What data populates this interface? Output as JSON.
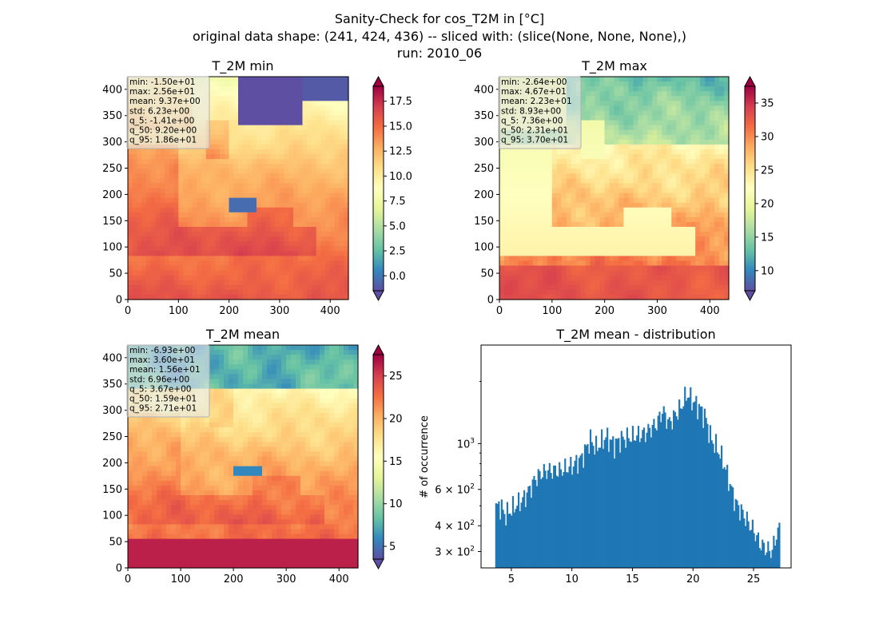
{
  "figure": {
    "title_lines": [
      "Sanity-Check for cos_T2M in [°C]",
      "original data shape: (241, 424, 436) -- sliced with: (slice(None, None, None),)",
      "run: 2010_06"
    ]
  },
  "colormap": {
    "name": "Spectral_r",
    "stops": [
      "#5e4fa2",
      "#3288bd",
      "#66c2a5",
      "#abdda4",
      "#e6f598",
      "#ffffbf",
      "#fee08b",
      "#fdae61",
      "#f46d43",
      "#d53e4f",
      "#9e0142"
    ]
  },
  "chart_data": [
    {
      "type": "heatmap",
      "title": "T_2M min",
      "xlim": [
        0,
        436
      ],
      "ylim": [
        0,
        424
      ],
      "xticks": [
        0,
        100,
        200,
        300,
        400
      ],
      "yticks": [
        0,
        50,
        100,
        150,
        200,
        250,
        300,
        350,
        400
      ],
      "colorbar": {
        "vmin": -1.5,
        "vmax": 19.0,
        "ticks": [
          0.0,
          2.5,
          5.0,
          7.5,
          10.0,
          12.5,
          15.0,
          17.5
        ],
        "tick_labels": [
          "0.0",
          "2.5",
          "5.0",
          "7.5",
          "10.0",
          "12.5",
          "15.0",
          "17.5"
        ],
        "extend": "both"
      },
      "stats": [
        "min: -1.50e+01",
        "max: 2.56e+01",
        "mean: 9.37e+00",
        "std: 6.23e+00",
        "q_5: -1.41e+00",
        "q_50: 9.20e+00",
        "q_95: 1.86e+01"
      ]
    },
    {
      "type": "heatmap",
      "title": "T_2M max",
      "xlim": [
        0,
        436
      ],
      "ylim": [
        0,
        424
      ],
      "xticks": [
        0,
        100,
        200,
        300,
        400
      ],
      "yticks": [
        0,
        50,
        100,
        150,
        200,
        250,
        300,
        350,
        400
      ],
      "colorbar": {
        "vmin": 7.0,
        "vmax": 37.5,
        "ticks": [
          10,
          15,
          20,
          25,
          30,
          35
        ],
        "tick_labels": [
          "10",
          "15",
          "20",
          "25",
          "30",
          "35"
        ],
        "extend": "both"
      },
      "stats": [
        "min: -2.64e+00",
        "max: 4.67e+01",
        "mean: 2.23e+01",
        "std: 8.93e+00",
        "q_5: 7.36e+00",
        "q_50: 2.31e+01",
        "q_95: 3.70e+01"
      ]
    },
    {
      "type": "heatmap",
      "title": "T_2M mean",
      "xlim": [
        0,
        436
      ],
      "ylim": [
        0,
        424
      ],
      "xticks": [
        0,
        100,
        200,
        300,
        400
      ],
      "yticks": [
        0,
        50,
        100,
        150,
        200,
        250,
        300,
        350,
        400
      ],
      "colorbar": {
        "vmin": 3.5,
        "vmax": 27.5,
        "ticks": [
          5,
          10,
          15,
          20,
          25
        ],
        "tick_labels": [
          "5",
          "10",
          "15",
          "20",
          "25"
        ],
        "extend": "both"
      },
      "stats": [
        "min: -6.93e+00",
        "max: 3.60e+01",
        "mean: 1.56e+01",
        "std: 6.96e+00",
        "q_5: 3.67e+00",
        "q_50: 1.59e+01",
        "q_95: 2.71e+01"
      ]
    },
    {
      "type": "bar",
      "title": "T_2M mean - distribution",
      "ylabel": "# of occurrence",
      "xlim": [
        2.5,
        28.1
      ],
      "ylim": [
        250,
        3000
      ],
      "yscale": "log",
      "xticks": [
        5,
        10,
        15,
        20,
        25
      ],
      "xtick_labels": [
        "5",
        "10",
        "15",
        "20",
        "25"
      ],
      "yticks": [
        300,
        400,
        600,
        1000
      ],
      "ytick_labels": [
        {
          "base": "3 × 10",
          "exp": "2"
        },
        {
          "base": "4 × 10",
          "exp": "2"
        },
        {
          "base": "6 × 10",
          "exp": "2"
        },
        {
          "base": "10",
          "exp": "3"
        }
      ],
      "bin_start": 3.67,
      "bin_width": 0.1164,
      "color": "#1f77b4",
      "anchors": [
        [
          3.67,
          480
        ],
        [
          4.0,
          510
        ],
        [
          4.5,
          450
        ],
        [
          5.0,
          480
        ],
        [
          5.5,
          510
        ],
        [
          6.0,
          540
        ],
        [
          6.5,
          600
        ],
        [
          7.0,
          680
        ],
        [
          7.5,
          720
        ],
        [
          8.0,
          740
        ],
        [
          9.0,
          740
        ],
        [
          10.0,
          780
        ],
        [
          10.8,
          850
        ],
        [
          11.5,
          1050
        ],
        [
          12.0,
          950
        ],
        [
          12.8,
          1080
        ],
        [
          13.5,
          990
        ],
        [
          14.0,
          1050
        ],
        [
          15.0,
          1080
        ],
        [
          16.0,
          1120
        ],
        [
          17.0,
          1250
        ],
        [
          17.5,
          1450
        ],
        [
          18.0,
          1250
        ],
        [
          19.0,
          1500
        ],
        [
          19.5,
          1750
        ],
        [
          20.0,
          1600
        ],
        [
          20.5,
          1500
        ],
        [
          21.0,
          1350
        ],
        [
          21.5,
          1050
        ],
        [
          22.0,
          950
        ],
        [
          22.5,
          820
        ],
        [
          23.0,
          650
        ],
        [
          23.5,
          520
        ],
        [
          24.0,
          470
        ],
        [
          24.5,
          420
        ],
        [
          25.0,
          380
        ],
        [
          25.5,
          330
        ],
        [
          26.0,
          310
        ],
        [
          26.5,
          300
        ],
        [
          27.0,
          380
        ]
      ]
    }
  ]
}
